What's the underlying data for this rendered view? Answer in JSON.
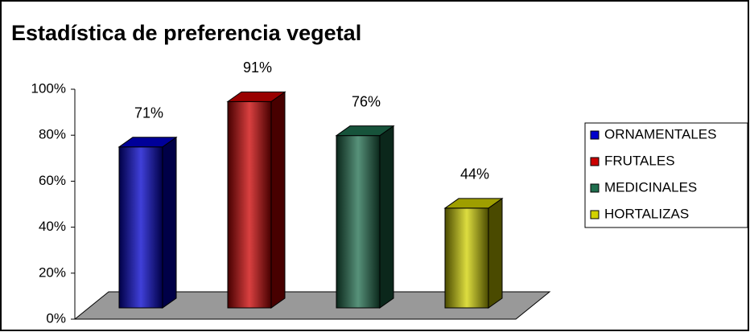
{
  "chart_data": {
    "type": "bar3d",
    "title": "Estadística de preferencia vegetal",
    "series": [
      {
        "name": "ORNAMENTALES",
        "color": "#0000cc",
        "values": [
          71
        ],
        "value_labels": [
          "71%"
        ]
      },
      {
        "name": "FRUTALES",
        "color": "#cc0000",
        "values": [
          91
        ],
        "value_labels": [
          "91%"
        ]
      },
      {
        "name": "MEDICINALES",
        "color": "#1f6e4e",
        "values": [
          76
        ],
        "value_labels": [
          "76%"
        ]
      },
      {
        "name": "HORTALIZAS",
        "color": "#d2d200",
        "values": [
          44
        ],
        "value_labels": [
          "44%"
        ]
      }
    ],
    "ylim": [
      0,
      100
    ],
    "yticks": [
      {
        "value": 0,
        "label": "0%"
      },
      {
        "value": 20,
        "label": "20%"
      },
      {
        "value": 40,
        "label": "40%"
      },
      {
        "value": 60,
        "label": "60%"
      },
      {
        "value": 80,
        "label": "80%"
      },
      {
        "value": 100,
        "label": "100%"
      }
    ],
    "legend": "right"
  }
}
